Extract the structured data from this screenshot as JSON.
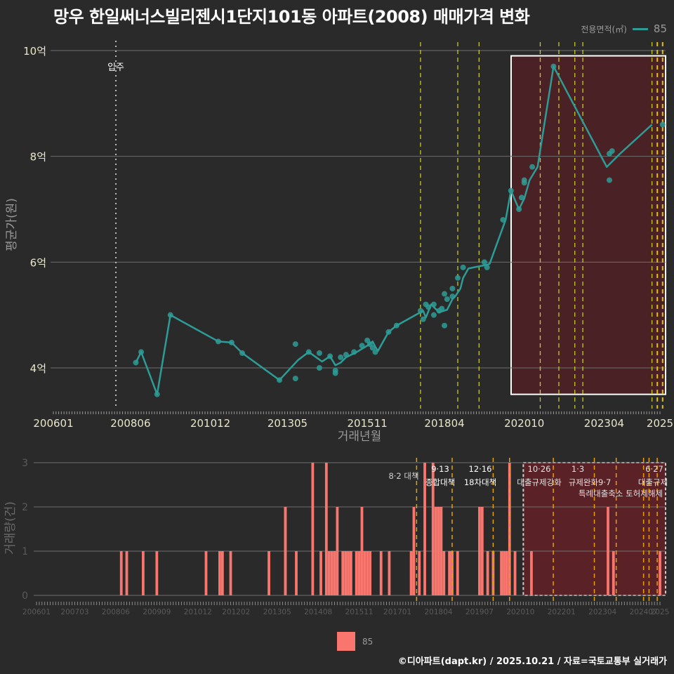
{
  "title": "망우 한일써너스빌리젠시1단지101동 아파트(2008) 매매가격 변화",
  "legend_top": {
    "title": "전용면적(㎡)",
    "label": "85",
    "color": "#2e9c96"
  },
  "legend_bottom": {
    "label": "85",
    "color": "#f8766d"
  },
  "footer": "©디아파트(dapt.kr) / 2025.10.21 / 자료=국토교통부 실거래가",
  "chart_data": [
    {
      "type": "line",
      "title": "망우 한일써너스빌리젠시1단지101동 아파트(2008) 매매가격 변화",
      "xlabel": "거래년월",
      "ylabel": "평균가(원)",
      "y_ticks": [
        {
          "value": 4,
          "label": "4억"
        },
        {
          "value": 6,
          "label": "6억"
        },
        {
          "value": 8,
          "label": "8억"
        },
        {
          "value": 10,
          "label": "10억"
        }
      ],
      "ylim": [
        3.3,
        10.2
      ],
      "x_ticks": [
        "200601",
        "200806",
        "201012",
        "201305",
        "201511",
        "201804",
        "202010",
        "202304",
        "2025"
      ],
      "x_tick_months": [
        0,
        29,
        59,
        88,
        118,
        147,
        177,
        207,
        228
      ],
      "grid": true,
      "legend_position": "top-right",
      "annotations": [
        {
          "label": "입주",
          "month": 23.5,
          "style": "dotted",
          "color": "#bbbbbb"
        }
      ],
      "policy_lines_months": [
        138,
        152,
        160,
        183,
        190,
        196,
        199,
        225,
        227,
        229
      ],
      "highlight_box": {
        "from_month": 173.5,
        "to_month": 229.5,
        "ymin": 3.5,
        "ymax": 9.9
      },
      "series": [
        {
          "name": "85",
          "unit": "억원",
          "line": [
            [
              31,
              4.1
            ],
            [
              33,
              4.3
            ],
            [
              39,
              3.5
            ],
            [
              44,
              5.0
            ],
            [
              62,
              4.5
            ],
            [
              67,
              4.48
            ],
            [
              71,
              4.28
            ],
            [
              85,
              3.77
            ],
            [
              92,
              4.15
            ],
            [
              96,
              4.3
            ],
            [
              101,
              4.12
            ],
            [
              104,
              4.22
            ],
            [
              106,
              4.05
            ],
            [
              108,
              4.1
            ],
            [
              110,
              4.2
            ],
            [
              114,
              4.3
            ],
            [
              118,
              4.42
            ],
            [
              120,
              4.5
            ],
            [
              121,
              4.4
            ],
            [
              122,
              4.32
            ],
            [
              126,
              4.68
            ],
            [
              129,
              4.8
            ],
            [
              139,
              5.08
            ],
            [
              140,
              4.95
            ],
            [
              142,
              5.2
            ],
            [
              145,
              5.05
            ],
            [
              148,
              5.1
            ],
            [
              150,
              5.3
            ],
            [
              151,
              5.35
            ],
            [
              153,
              5.5
            ],
            [
              154,
              5.7
            ],
            [
              156,
              5.88
            ],
            [
              163,
              5.95
            ],
            [
              164,
              5.97
            ],
            [
              170,
              6.8
            ],
            [
              172,
              7.35
            ],
            [
              175,
              7.0
            ],
            [
              177,
              7.2
            ],
            [
              179,
              7.55
            ],
            [
              182,
              7.8
            ],
            [
              188,
              9.7
            ],
            [
              208,
              7.8
            ],
            [
              213,
              8.05
            ],
            [
              225,
              8.6
            ]
          ],
          "points": [
            [
              31,
              4.1
            ],
            [
              33,
              4.3
            ],
            [
              39,
              3.5
            ],
            [
              44,
              5.0
            ],
            [
              62,
              4.5
            ],
            [
              67,
              4.48
            ],
            [
              71,
              4.28
            ],
            [
              85,
              3.77
            ],
            [
              91,
              4.45
            ],
            [
              91,
              3.8
            ],
            [
              96,
              4.3
            ],
            [
              100,
              4.28
            ],
            [
              100,
              4.0
            ],
            [
              104,
              4.22
            ],
            [
              106,
              3.9
            ],
            [
              106,
              3.95
            ],
            [
              108,
              4.2
            ],
            [
              110,
              4.25
            ],
            [
              113,
              4.3
            ],
            [
              116,
              4.42
            ],
            [
              118,
              4.52
            ],
            [
              119,
              4.45
            ],
            [
              120,
              4.38
            ],
            [
              121,
              4.3
            ],
            [
              126,
              4.68
            ],
            [
              129,
              4.8
            ],
            [
              138,
              5.08
            ],
            [
              139,
              4.92
            ],
            [
              140,
              5.2
            ],
            [
              141,
              5.15
            ],
            [
              143,
              5.0
            ],
            [
              143,
              5.2
            ],
            [
              145,
              5.08
            ],
            [
              146,
              5.12
            ],
            [
              147,
              5.4
            ],
            [
              147,
              4.8
            ],
            [
              148,
              5.3
            ],
            [
              150,
              5.5
            ],
            [
              150,
              5.35
            ],
            [
              152,
              5.7
            ],
            [
              154,
              5.9
            ],
            [
              162,
              6.0
            ],
            [
              163,
              5.9
            ],
            [
              169,
              6.8
            ],
            [
              172,
              7.35
            ],
            [
              175,
              7.0
            ],
            [
              176,
              7.22
            ],
            [
              177,
              7.55
            ],
            [
              177,
              7.5
            ],
            [
              180,
              7.8
            ],
            [
              188,
              9.7
            ],
            [
              209,
              7.55
            ],
            [
              209,
              8.05
            ],
            [
              210,
              8.1
            ],
            [
              229,
              8.6
            ]
          ]
        }
      ]
    },
    {
      "type": "bar",
      "xlabel": "",
      "ylabel": "거래량(건)",
      "y_ticks": [
        0,
        1,
        2,
        3
      ],
      "ylim": [
        0,
        3
      ],
      "x_ticks": [
        "200601",
        "200703",
        "200806",
        "200909",
        "201012",
        "201202",
        "201305",
        "201408",
        "201511",
        "201701",
        "201804",
        "201907",
        "202010",
        "202201",
        "202304",
        "202407",
        "2025"
      ],
      "x_tick_months": [
        0,
        14,
        29,
        44,
        59,
        73,
        88,
        103,
        118,
        132,
        147,
        162,
        177,
        192,
        207,
        222,
        228
      ],
      "policy_annotations": [
        {
          "month": 139,
          "date": "8·2 대책",
          "label": ""
        },
        {
          "month": 152,
          "date": "9·13",
          "label": "종합대책"
        },
        {
          "month": 167,
          "date": "12·16",
          "label": "18차대책"
        },
        {
          "month": 173,
          "date": "",
          "label": ""
        },
        {
          "month": 189,
          "date": "10·26",
          "label": "대출규제강화"
        },
        {
          "month": 204,
          "date": "1·3",
          "label": "규제완화"
        },
        {
          "month": 212,
          "date": "9·7",
          "label": "특례대출축소"
        },
        {
          "month": 222,
          "date": "",
          "label": "토허제해제"
        },
        {
          "month": 224,
          "date": "6·27",
          "label": "대출규제"
        },
        {
          "month": 227,
          "date": "10",
          "label": ""
        }
      ],
      "highlight_box": {
        "from_month": 177,
        "to_month": 229
      },
      "series": [
        {
          "name": "85",
          "bars": [
            [
              31,
              1
            ],
            [
              33,
              1
            ],
            [
              39,
              1
            ],
            [
              44,
              1
            ],
            [
              62,
              1
            ],
            [
              67,
              1
            ],
            [
              68,
              1
            ],
            [
              71,
              1
            ],
            [
              85,
              1
            ],
            [
              91,
              2
            ],
            [
              91,
              2
            ],
            [
              95,
              1
            ],
            [
              101,
              3
            ],
            [
              104,
              1
            ],
            [
              106,
              3
            ],
            [
              107,
              1
            ],
            [
              108,
              1
            ],
            [
              109,
              1
            ],
            [
              110,
              2
            ],
            [
              112,
              1
            ],
            [
              113,
              1
            ],
            [
              114,
              1
            ],
            [
              115,
              1
            ],
            [
              117,
              1
            ],
            [
              118,
              1
            ],
            [
              119,
              2
            ],
            [
              120,
              1
            ],
            [
              121,
              1
            ],
            [
              122,
              1
            ],
            [
              126,
              1
            ],
            [
              129,
              1
            ],
            [
              137,
              1
            ],
            [
              138,
              2
            ],
            [
              140,
              1
            ],
            [
              142,
              3
            ],
            [
              145,
              3
            ],
            [
              146,
              2
            ],
            [
              147,
              2
            ],
            [
              148,
              2
            ],
            [
              149,
              1
            ],
            [
              151,
              1
            ],
            [
              152,
              1
            ],
            [
              154,
              1
            ],
            [
              162,
              2
            ],
            [
              163,
              2
            ],
            [
              165,
              1
            ],
            [
              167,
              1
            ],
            [
              170,
              1
            ],
            [
              171,
              1
            ],
            [
              172,
              1
            ],
            [
              173,
              3
            ],
            [
              175,
              1
            ],
            [
              181,
              1
            ],
            [
              209,
              2
            ],
            [
              211,
              1
            ],
            [
              228,
              1
            ]
          ]
        }
      ]
    }
  ]
}
